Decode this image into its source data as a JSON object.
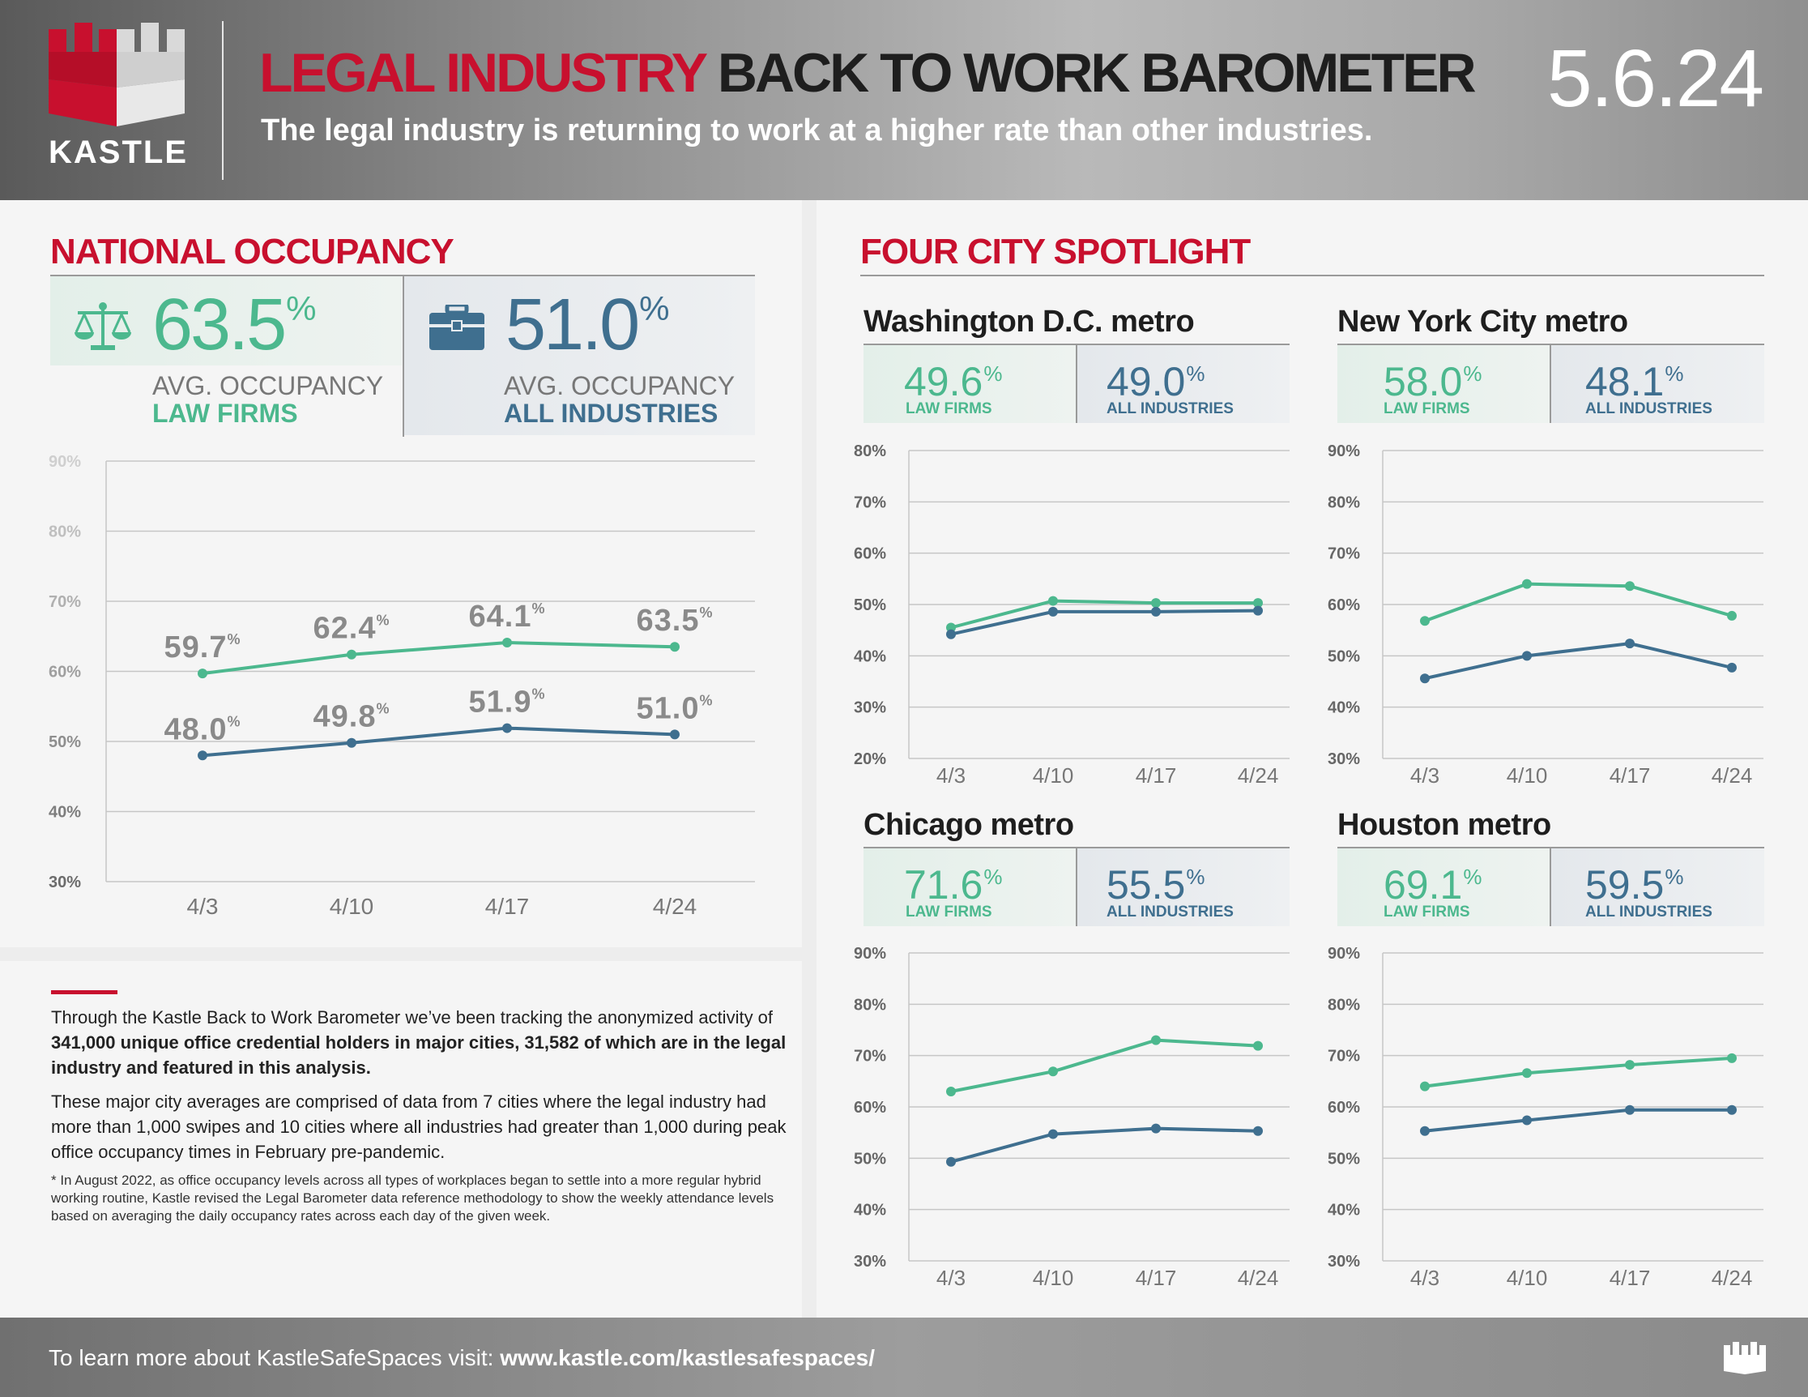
{
  "header": {
    "logo_text": "KASTLE",
    "title_red": "LEGAL INDUSTRY",
    "title_dark": "BACK TO WORK BAROMETER",
    "subtitle": "The legal industry is returning to work at a higher rate than other industries.",
    "date": "5.6.24"
  },
  "colors": {
    "law_firms": "#4cb88e",
    "all_industries": "#3f6f8f",
    "brand_red": "#c8102e"
  },
  "national": {
    "section_title": "NATIONAL OCCUPANCY",
    "law": {
      "value": "63.5",
      "pct": "%",
      "label1": "AVG. OCCUPANCY",
      "label2": "LAW FIRMS",
      "icon": "scales-icon"
    },
    "all": {
      "value": "51.0",
      "pct": "%",
      "label1": "AVG. OCCUPANCY",
      "label2": "ALL INDUSTRIES",
      "icon": "briefcase-icon"
    }
  },
  "cities": {
    "section_title": "FOUR CITY SPOTLIGHT",
    "list": [
      {
        "name": "Washington D.C. metro",
        "law": "49.6",
        "all": "49.0",
        "pct": "%",
        "law_label": "LAW FIRMS",
        "all_label": "ALL INDUSTRIES"
      },
      {
        "name": "New York City metro",
        "law": "58.0",
        "all": "48.1",
        "pct": "%",
        "law_label": "LAW FIRMS",
        "all_label": "ALL INDUSTRIES"
      },
      {
        "name": "Chicago metro",
        "law": "71.6",
        "all": "55.5",
        "pct": "%",
        "law_label": "LAW FIRMS",
        "all_label": "ALL INDUSTRIES"
      },
      {
        "name": "Houston metro",
        "law": "69.1",
        "all": "59.5",
        "pct": "%",
        "law_label": "LAW FIRMS",
        "all_label": "ALL INDUSTRIES"
      }
    ]
  },
  "notes": {
    "p1_a": "Through the Kastle Back to Work Barometer we’ve been tracking the anonymized activity of ",
    "p1_b": "341,000 unique office credential holders in major cities, 31,582 of which are in the legal industry and featured in this analysis.",
    "p2": "These major city averages are comprised of data from 7 cities where the legal industry had more than 1,000 swipes and 10 cities where all industries had greater than 1,000 during peak office occupancy times in February pre-pandemic.",
    "p3": "* In August 2022, as office occupancy levels across all types of workplaces began to settle into a more regular hybrid working routine, Kastle revised the Legal Barometer data reference methodology to show the weekly attendance levels based on averaging the daily occupancy rates across each day of the given week."
  },
  "footer": {
    "text": "To learn more about KastleSafeSpaces visit: ",
    "url": "www.kastle.com/kastlesafespaces/",
    "icon": "castle-icon"
  },
  "chart_data": [
    {
      "id": "national",
      "type": "line",
      "categories": [
        "4/3",
        "4/10",
        "4/17",
        "4/24"
      ],
      "yticks": [
        "90%",
        "80%",
        "70%",
        "60%",
        "50%",
        "40%",
        "30%"
      ],
      "ylim": [
        30,
        90
      ],
      "grid": true,
      "series": [
        {
          "key": "law",
          "values": [
            59.7,
            62.4,
            64.1,
            63.5
          ],
          "labels": [
            "59.7",
            "62.4",
            "64.1",
            "63.5"
          ],
          "label_pct": "%",
          "color": "#4cb88e"
        },
        {
          "key": "all",
          "values": [
            48.0,
            49.8,
            51.9,
            51.0
          ],
          "labels": [
            "48.0",
            "49.8",
            "51.9",
            "51.0"
          ],
          "label_pct": "%",
          "color": "#3f6f8f"
        }
      ]
    },
    {
      "id": "dc",
      "type": "line",
      "categories": [
        "4/3",
        "4/10",
        "4/17",
        "4/24"
      ],
      "yticks": [
        "80%",
        "70%",
        "60%",
        "50%",
        "40%",
        "30%",
        "20%"
      ],
      "ylim": [
        20,
        80
      ],
      "grid": true,
      "series": [
        {
          "key": "law",
          "values": [
            45.5,
            50.7,
            50.3,
            50.3
          ],
          "color": "#4cb88e"
        },
        {
          "key": "all",
          "values": [
            44.2,
            48.6,
            48.6,
            48.8
          ],
          "color": "#3f6f8f"
        }
      ]
    },
    {
      "id": "nyc",
      "type": "line",
      "categories": [
        "4/3",
        "4/10",
        "4/17",
        "4/24"
      ],
      "yticks": [
        "90%",
        "80%",
        "70%",
        "60%",
        "50%",
        "40%",
        "30%"
      ],
      "ylim": [
        30,
        90
      ],
      "grid": true,
      "series": [
        {
          "key": "law",
          "values": [
            56.8,
            64.0,
            63.6,
            57.8
          ],
          "color": "#4cb88e"
        },
        {
          "key": "all",
          "values": [
            45.6,
            50.0,
            52.4,
            47.7
          ],
          "color": "#3f6f8f"
        }
      ]
    },
    {
      "id": "chicago",
      "type": "line",
      "categories": [
        "4/3",
        "4/10",
        "4/17",
        "4/24"
      ],
      "yticks": [
        "90%",
        "80%",
        "70%",
        "60%",
        "50%",
        "40%",
        "30%"
      ],
      "ylim": [
        30,
        90
      ],
      "grid": true,
      "series": [
        {
          "key": "law",
          "values": [
            63.0,
            66.9,
            73.0,
            71.9
          ],
          "color": "#4cb88e"
        },
        {
          "key": "all",
          "values": [
            49.3,
            54.7,
            55.8,
            55.3
          ],
          "color": "#3f6f8f"
        }
      ]
    },
    {
      "id": "houston",
      "type": "line",
      "categories": [
        "4/3",
        "4/10",
        "4/17",
        "4/24"
      ],
      "yticks": [
        "90%",
        "80%",
        "70%",
        "60%",
        "50%",
        "40%",
        "30%"
      ],
      "ylim": [
        30,
        90
      ],
      "grid": true,
      "series": [
        {
          "key": "law",
          "values": [
            64.0,
            66.6,
            68.2,
            69.5
          ],
          "color": "#4cb88e"
        },
        {
          "key": "all",
          "values": [
            55.3,
            57.4,
            59.4,
            59.4
          ],
          "color": "#3f6f8f"
        }
      ]
    }
  ]
}
